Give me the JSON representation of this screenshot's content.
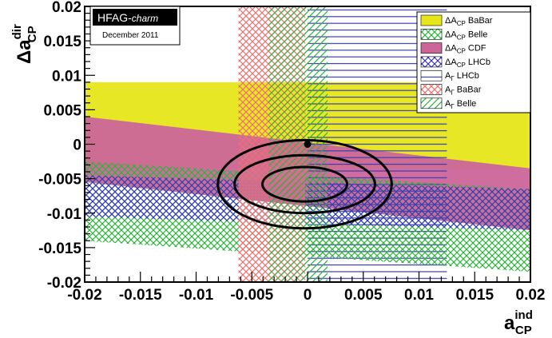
{
  "chart_data": {
    "type": "area",
    "banner": {
      "title": "HFAG-",
      "title_italic": "charm",
      "subtitle": "December 2011"
    },
    "xlabel": {
      "base": "a",
      "sup": "ind",
      "sub": "CP"
    },
    "ylabel": {
      "base": "Δa",
      "sup": "dir",
      "sub": "CP"
    },
    "xlim": [
      -0.02,
      0.02
    ],
    "ylim": [
      -0.02,
      0.02
    ],
    "x_ticks": [
      -0.02,
      -0.015,
      -0.01,
      -0.005,
      0,
      0.005,
      0.01,
      0.015,
      0.02
    ],
    "x_tick_labels": [
      "-0.02",
      "-0.015",
      "-0.01",
      "-0.005",
      "0",
      "0.005",
      "0.01",
      "0.015",
      "0.02"
    ],
    "y_ticks": [
      -0.02,
      -0.015,
      -0.01,
      -0.005,
      0,
      0.005,
      0.01,
      0.015,
      0.02
    ],
    "y_tick_labels": [
      "-0.02",
      "-0.015",
      "-0.01",
      "-0.005",
      "0",
      "0.005",
      "0.01",
      "0.015",
      "0.02"
    ],
    "bands": [
      {
        "legend": "ΔA_CP BaBar",
        "kind": "horizontal",
        "y": [
          -0.0035,
          0.009
        ],
        "x_extent": [
          -0.02,
          0.02
        ],
        "color": "#e6e619",
        "pattern": "solid"
      },
      {
        "legend": "ΔA_CP Belle",
        "kind": "tilted",
        "y_at_xmin": [
          -0.014,
          -0.0025
        ],
        "y_at_xmax": [
          -0.0185,
          -0.0065
        ],
        "color": "#2bb43a",
        "pattern": "crosshatch"
      },
      {
        "legend": "ΔA_CP CDF",
        "kind": "tilted",
        "y_at_xmin": [
          -0.0055,
          0.004
        ],
        "y_at_xmax": [
          -0.0125,
          -0.0035
        ],
        "color": "#cc6699",
        "pattern": "solid"
      },
      {
        "legend": "ΔA_CP LHCb",
        "kind": "tilted",
        "y_at_xmin": [
          -0.0105,
          -0.0045
        ],
        "y_at_xmax": [
          -0.0125,
          -0.0065
        ],
        "color": "#3a3ab4",
        "pattern": "crosshatch"
      },
      {
        "legend": "A_Γ LHCb",
        "kind": "vertical",
        "x": [
          0,
          0.0125
        ],
        "color": "#3a3ab4",
        "pattern": "horizontal-lines"
      },
      {
        "legend": "A_Γ BaBar",
        "kind": "vertical",
        "x": [
          -0.0062,
          -0.0002
        ],
        "color": "#ee7070",
        "pattern": "crosshatch"
      },
      {
        "legend": "A_Γ Belle",
        "kind": "vertical",
        "x": [
          -0.0035,
          0.0018
        ],
        "color": "#2bb43a",
        "pattern": "diagonal-lines"
      }
    ],
    "legend_items": [
      {
        "prefix": "ΔA",
        "sub": "CP",
        "suffix": " BaBar"
      },
      {
        "prefix": "ΔA",
        "sub": "CP",
        "suffix": " Belle"
      },
      {
        "prefix": "ΔA",
        "sub": "CP",
        "suffix": " CDF"
      },
      {
        "prefix": "ΔA",
        "sub": "CP",
        "suffix": " LHCb"
      },
      {
        "prefix": "A",
        "sub": "Γ",
        "suffix": " LHCb"
      },
      {
        "prefix": "A",
        "sub": "Γ",
        "suffix": " BaBar"
      },
      {
        "prefix": "A",
        "sub": "Γ",
        "suffix": " Belle"
      }
    ],
    "contours": [
      {
        "cx": -0.00025,
        "cy": -0.0058,
        "rx": 0.0038,
        "ry": 0.0025
      },
      {
        "cx": -0.00025,
        "cy": -0.0058,
        "rx": 0.0063,
        "ry": 0.0042
      },
      {
        "cx": -0.00025,
        "cy": -0.0058,
        "rx": 0.0078,
        "ry": 0.0064
      }
    ],
    "reference_point": {
      "x": 0,
      "y": 0
    },
    "legend_placement": "top-right",
    "grid": false
  }
}
